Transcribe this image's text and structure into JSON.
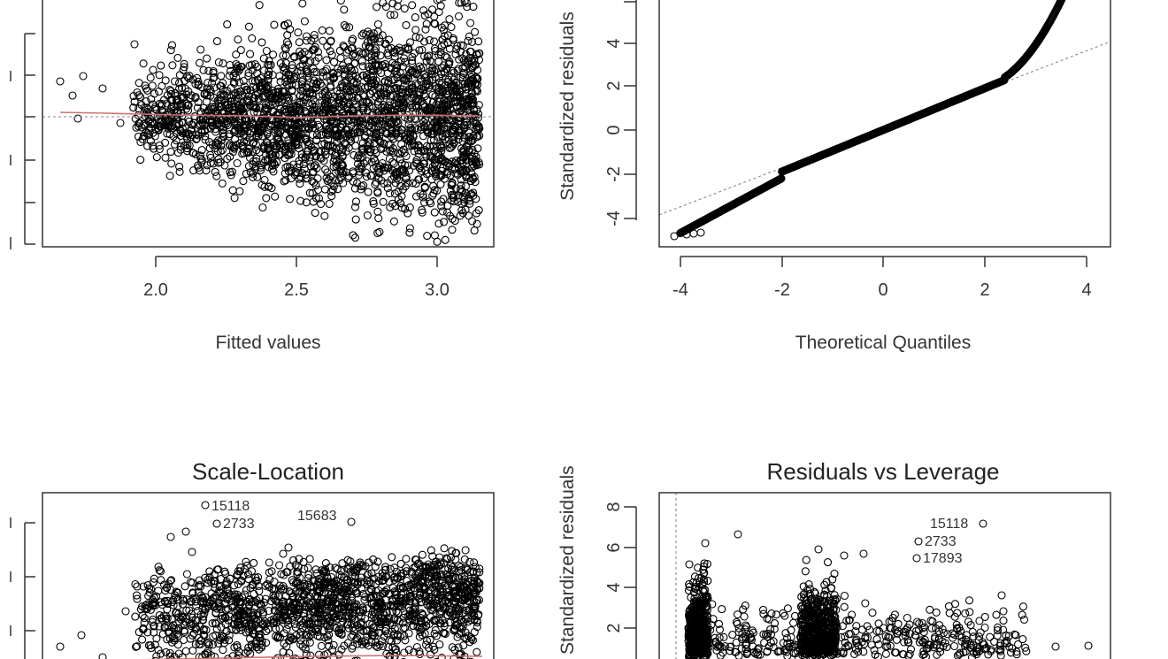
{
  "chart_data": [
    {
      "panel": "residuals-vs-fitted",
      "type": "scatter",
      "title": "",
      "xlabel": "Fitted values",
      "ylabel": "",
      "xticks": [
        "2.0",
        "2.5",
        "3.0"
      ],
      "xlim": [
        1.6,
        3.2
      ],
      "ylim": [
        -3.0,
        2.8
      ],
      "reference_line": 0,
      "smoother_color": "#d07070",
      "annotations": []
    },
    {
      "panel": "normal-qq",
      "type": "scatter",
      "title": "",
      "xlabel": "Theoretical Quantiles",
      "ylabel": "Standardized residuals",
      "xticks": [
        "-4",
        "-2",
        "0",
        "2",
        "4"
      ],
      "yticks": [
        "-4",
        "-2",
        "0",
        "2",
        "4"
      ],
      "xlim": [
        -4.4,
        4.4
      ],
      "ylim": [
        -5.5,
        6.3
      ]
    },
    {
      "panel": "scale-location",
      "type": "scatter",
      "title": "Scale-Location",
      "xlabel": "",
      "ylabel": "",
      "annotations": [
        {
          "text": "15118",
          "x": 2.17,
          "y": 2.55
        },
        {
          "text": "2733",
          "x": 2.21,
          "y": 2.45
        },
        {
          "text": "15683",
          "x": 2.7,
          "y": 2.47
        }
      ]
    },
    {
      "panel": "residuals-vs-leverage",
      "type": "scatter",
      "title": "Residuals vs Leverage",
      "xlabel": "",
      "ylabel": "Standardized residuals",
      "yticks": [
        "2",
        "4",
        "6",
        "8"
      ],
      "ylim": [
        -1,
        8.5
      ],
      "annotations": [
        {
          "text": "15118",
          "x": 0.0082,
          "y": 7.1
        },
        {
          "text": "2733",
          "x": 0.0065,
          "y": 6.3
        },
        {
          "text": "17893",
          "x": 0.0065,
          "y": 5.6
        }
      ]
    }
  ]
}
